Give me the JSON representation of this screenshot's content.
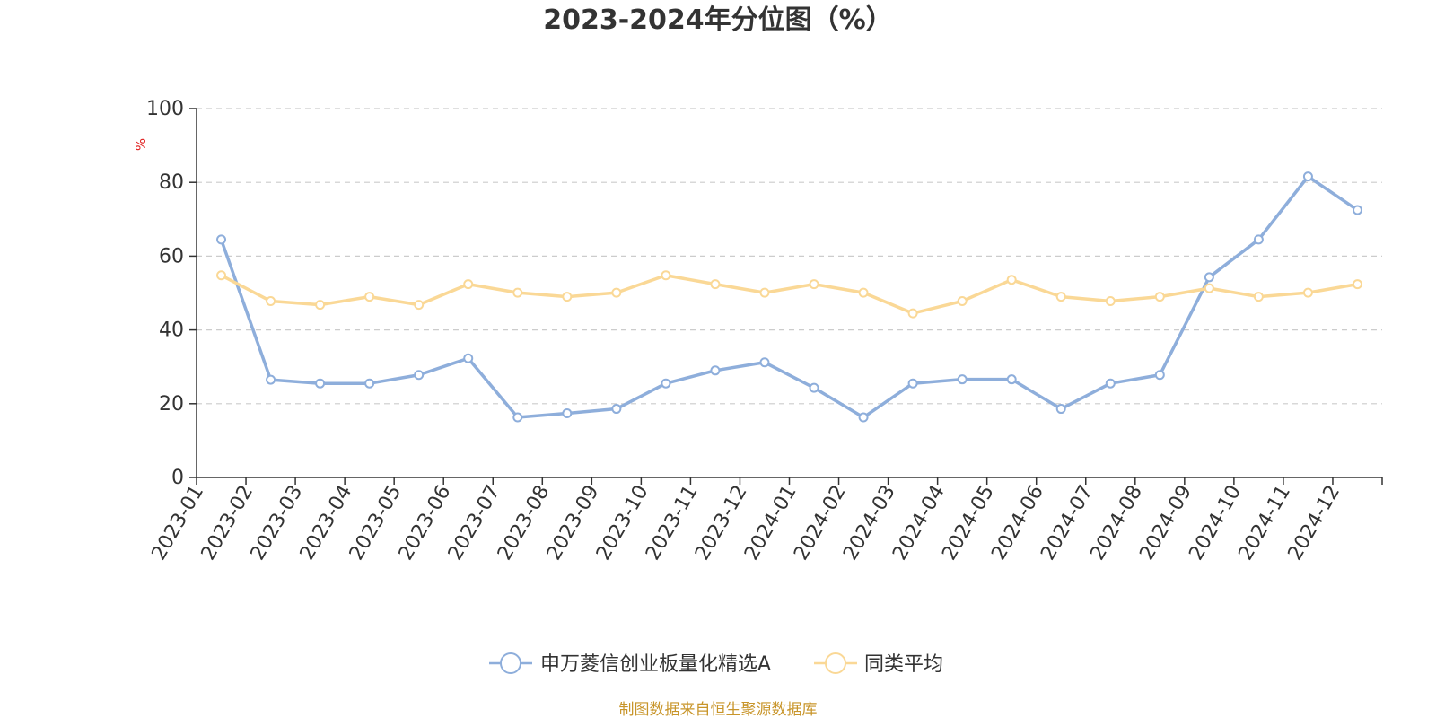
{
  "chart_data": {
    "type": "line",
    "title": "2023-2024年分位图（%）",
    "ylabel": "%",
    "ylim": [
      0,
      100
    ],
    "yticks": [
      0,
      20,
      40,
      60,
      80,
      100
    ],
    "grid": true,
    "legend_position": "bottom",
    "categories": [
      "2023-01",
      "2023-02",
      "2023-03",
      "2023-04",
      "2023-05",
      "2023-06",
      "2023-07",
      "2023-08",
      "2023-09",
      "2023-10",
      "2023-11",
      "2023-12",
      "2024-01",
      "2024-02",
      "2024-03",
      "2024-04",
      "2024-05",
      "2024-06",
      "2024-07",
      "2024-08",
      "2024-09",
      "2024-10",
      "2024-11",
      "2024-12"
    ],
    "series": [
      {
        "name": "申万菱信创业板量化精选A",
        "color": "#8eaedb",
        "values": [
          64.5,
          26.5,
          25.5,
          25.5,
          27.8,
          32.3,
          16.3,
          17.4,
          18.6,
          25.5,
          29.0,
          31.2,
          24.3,
          16.3,
          25.5,
          26.6,
          26.6,
          18.6,
          25.5,
          27.8,
          54.3,
          64.5,
          81.6,
          72.5
        ]
      },
      {
        "name": "同类平均",
        "color": "#fad896",
        "values": [
          54.8,
          47.8,
          46.8,
          49.0,
          46.8,
          52.4,
          50.1,
          49.0,
          50.1,
          54.8,
          52.4,
          50.1,
          52.4,
          50.1,
          44.5,
          47.8,
          53.6,
          49.0,
          47.8,
          49.0,
          51.3,
          49.0,
          50.1,
          52.4
        ]
      }
    ]
  },
  "footer": {
    "source": "制图数据来自恒生聚源数据库"
  }
}
